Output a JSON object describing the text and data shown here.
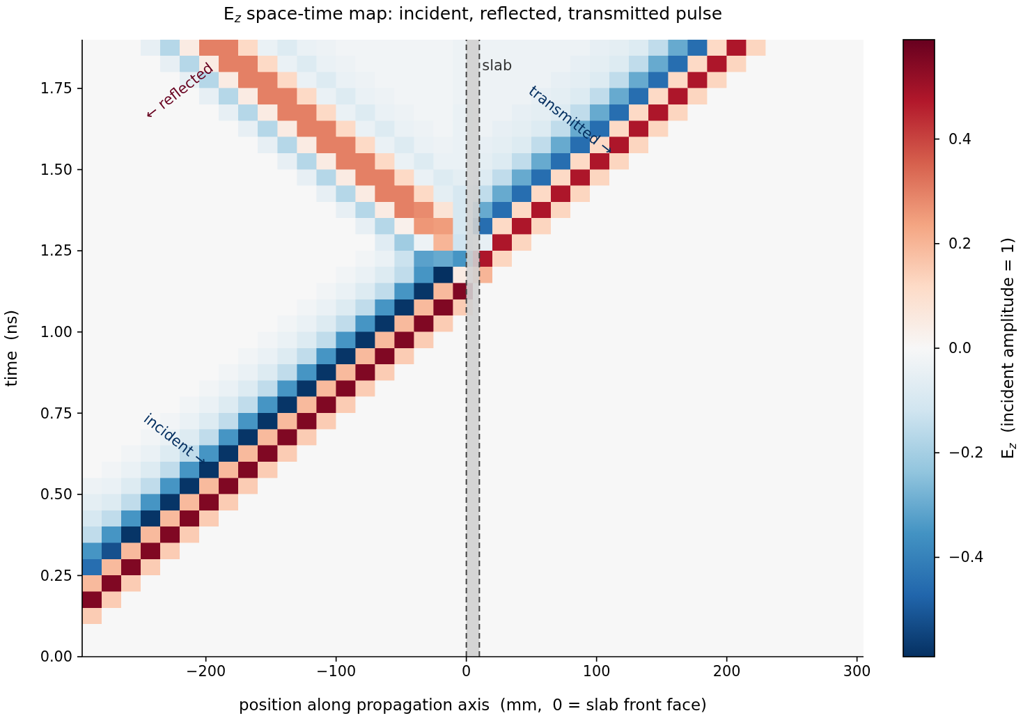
{
  "chart_data": {
    "type": "heatmap",
    "title": "E$_{z}$ space-time map: incident, reflected, transmitted pulse",
    "xlabel": "position along propagation axis  (mm,  0 = slab front face)",
    "ylabel": "time  (ns)",
    "clabel": "E$_{z}$  (incident amplitude = 1)",
    "x": [
      -287.5,
      -272.5,
      -257.5,
      -242.5,
      -227.5,
      -212.5,
      -197.5,
      -182.5,
      -167.5,
      -152.5,
      -137.5,
      -122.5,
      -107.5,
      -92.5,
      -77.5,
      -62.5,
      -47.5,
      -32.5,
      -17.5,
      -2.5,
      12.5,
      27.5,
      42.5,
      57.5,
      72.5,
      87.5,
      102.5,
      117.5,
      132.5,
      147.5,
      162.5,
      177.5,
      192.5,
      207.5,
      222.5,
      237.5,
      252.5,
      267.5,
      282.5,
      297.5
    ],
    "xlim": [
      -295,
      305
    ],
    "ylim": [
      0,
      1.9
    ],
    "xticks": [
      {
        "value": -200,
        "label": "−200"
      },
      {
        "value": -100,
        "label": "−100"
      },
      0,
      100,
      200,
      300
    ],
    "yticks": [
      {
        "value": 0,
        "label": "0.00"
      },
      {
        "value": 0.25,
        "label": "0.25"
      },
      {
        "value": 0.5,
        "label": "0.50"
      },
      {
        "value": 0.75,
        "label": "0.75"
      },
      {
        "value": 1,
        "label": "1.00"
      },
      {
        "value": 1.25,
        "label": "1.25"
      },
      {
        "value": 1.5,
        "label": "1.50"
      },
      {
        "value": 1.75,
        "label": "1.75"
      }
    ],
    "clim": [
      -0.59,
      0.59
    ],
    "cticks": [
      {
        "value": -0.4,
        "label": "−0.4"
      },
      {
        "value": -0.2,
        "label": "−0.2"
      },
      {
        "value": 0,
        "label": "0.0"
      },
      0.2,
      0.4
    ],
    "cells": [
      [
        0,
        0,
        0,
        -0.05,
        -0.17,
        0.05,
        0.3,
        0.3,
        0.12,
        -0.04,
        -0.08,
        -0.04,
        -0.03,
        -0.02,
        -0.02,
        -0.02,
        -0.02,
        -0.02,
        -0.02,
        -0.03,
        -0.03,
        -0.03,
        -0.03,
        -0.03,
        -0.03,
        -0.03,
        -0.05,
        -0.06,
        -0.08,
        -0.15,
        -0.3,
        -0.45,
        0.12,
        0.48,
        0.13,
        0,
        0,
        0,
        0,
        0
      ],
      [
        0,
        0,
        0,
        0,
        -0.05,
        -0.17,
        0.05,
        0.3,
        0.3,
        0.12,
        -0.04,
        -0.08,
        -0.04,
        -0.03,
        -0.02,
        -0.02,
        -0.02,
        -0.02,
        -0.02,
        -0.03,
        -0.03,
        -0.03,
        -0.03,
        -0.03,
        -0.03,
        -0.05,
        -0.06,
        -0.08,
        -0.15,
        -0.3,
        -0.45,
        0.12,
        0.48,
        0.13,
        0,
        0,
        0,
        0,
        0,
        0
      ],
      [
        0,
        0,
        0,
        0,
        0,
        -0.05,
        -0.17,
        0.05,
        0.3,
        0.3,
        0.12,
        -0.04,
        -0.08,
        -0.04,
        -0.03,
        -0.02,
        -0.02,
        -0.02,
        -0.02,
        -0.03,
        -0.03,
        -0.03,
        -0.03,
        -0.03,
        -0.05,
        -0.06,
        -0.08,
        -0.15,
        -0.3,
        -0.45,
        0.12,
        0.48,
        0.13,
        0,
        0,
        0,
        0,
        0,
        0,
        0
      ],
      [
        0,
        0,
        0,
        0,
        0,
        0,
        -0.05,
        -0.17,
        0.05,
        0.3,
        0.3,
        0.12,
        -0.04,
        -0.08,
        -0.04,
        -0.03,
        -0.02,
        -0.02,
        -0.02,
        -0.03,
        -0.03,
        -0.03,
        -0.03,
        -0.05,
        -0.06,
        -0.08,
        -0.15,
        -0.3,
        -0.45,
        0.12,
        0.48,
        0.13,
        0,
        0,
        0,
        0,
        0,
        0,
        0,
        0
      ],
      [
        0,
        0,
        0,
        0,
        0,
        0,
        0,
        -0.05,
        -0.17,
        0.05,
        0.3,
        0.3,
        0.12,
        -0.04,
        -0.08,
        -0.04,
        -0.03,
        -0.02,
        -0.02,
        -0.04,
        -0.03,
        -0.03,
        -0.05,
        -0.06,
        -0.08,
        -0.15,
        -0.3,
        -0.45,
        0.12,
        0.48,
        0.13,
        0,
        0,
        0,
        0,
        0,
        0,
        0,
        0,
        0
      ],
      [
        0,
        0,
        0,
        0,
        0,
        0,
        0,
        0,
        -0.05,
        -0.17,
        0.05,
        0.3,
        0.3,
        0.12,
        -0.04,
        -0.08,
        -0.04,
        -0.03,
        -0.02,
        -0.04,
        -0.03,
        -0.05,
        -0.06,
        -0.08,
        -0.15,
        -0.3,
        -0.45,
        0.12,
        0.48,
        0.13,
        0,
        0,
        0,
        0,
        0,
        0,
        0,
        0,
        0,
        0
      ],
      [
        0,
        0,
        0,
        0,
        0,
        0,
        0,
        0,
        0,
        -0.05,
        -0.17,
        0.05,
        0.3,
        0.3,
        0.12,
        -0.04,
        -0.08,
        -0.04,
        -0.03,
        -0.04,
        -0.05,
        -0.06,
        -0.08,
        -0.15,
        -0.3,
        -0.45,
        0.12,
        0.48,
        0.13,
        0,
        0,
        0,
        0,
        0,
        0,
        0,
        0,
        0,
        0,
        0
      ],
      [
        0,
        0,
        0,
        0,
        0,
        0,
        0,
        0,
        0,
        0,
        -0.05,
        -0.17,
        0.05,
        0.3,
        0.3,
        0.12,
        -0.04,
        -0.08,
        -0.04,
        -0.04,
        -0.06,
        -0.08,
        -0.15,
        -0.3,
        -0.45,
        0.12,
        0.48,
        0.13,
        0,
        0,
        0,
        0,
        0,
        0,
        0,
        0,
        0,
        0,
        0,
        0
      ],
      [
        0,
        0,
        0,
        0,
        0,
        0,
        0,
        0,
        0,
        0,
        0,
        -0.05,
        -0.17,
        0.05,
        0.3,
        0.3,
        0.12,
        -0.04,
        -0.08,
        -0.06,
        -0.08,
        -0.15,
        -0.3,
        -0.45,
        0.12,
        0.48,
        0.13,
        0,
        0,
        0,
        0,
        0,
        0,
        0,
        0,
        0,
        0,
        0,
        0,
        0
      ],
      [
        0,
        0,
        0,
        0,
        0,
        0,
        0,
        0,
        0,
        0,
        0,
        0,
        -0.05,
        -0.17,
        0.05,
        0.3,
        0.3,
        0.12,
        -0.06,
        -0.1,
        -0.15,
        -0.3,
        -0.45,
        0.12,
        0.48,
        0.13,
        0,
        0,
        0,
        0,
        0,
        0,
        0,
        0,
        0,
        0,
        0,
        0,
        0,
        0
      ],
      [
        0,
        0,
        0,
        0,
        0,
        0,
        0,
        0,
        0,
        0,
        0,
        0,
        0,
        -0.05,
        -0.17,
        0.05,
        0.3,
        0.28,
        0.08,
        -0.1,
        -0.3,
        -0.45,
        0.12,
        0.48,
        0.13,
        0,
        0,
        0,
        0,
        0,
        0,
        0,
        0,
        0,
        0,
        0,
        0,
        0,
        0,
        0
      ],
      [
        0,
        0,
        0,
        0,
        0,
        0,
        0,
        0,
        0,
        0,
        0,
        0,
        0,
        0,
        -0.05,
        -0.17,
        0.03,
        0.26,
        0.25,
        -0.1,
        -0.45,
        0.12,
        0.48,
        0.13,
        0,
        0,
        0,
        0,
        0,
        0,
        0,
        0,
        0,
        0,
        0,
        0,
        0,
        0,
        0,
        0
      ],
      [
        0,
        0,
        0,
        0,
        0,
        0,
        0,
        0,
        0,
        0,
        0,
        0,
        0,
        0,
        0,
        -0.07,
        -0.21,
        -0.03,
        0.2,
        -0.12,
        -0.05,
        0.48,
        0.13,
        0,
        0,
        0,
        0,
        0,
        0,
        0,
        0,
        0,
        0,
        0,
        0,
        0,
        0,
        0,
        0,
        0
      ],
      [
        0,
        0,
        0,
        0,
        0,
        0,
        0,
        0,
        0,
        0,
        0,
        0,
        0,
        0,
        -0.02,
        -0.04,
        -0.13,
        -0.32,
        -0.3,
        -0.35,
        0.48,
        0.13,
        0,
        0,
        0,
        0,
        0,
        0,
        0,
        0,
        0,
        0,
        0,
        0,
        0,
        0,
        0,
        0,
        0,
        0
      ],
      [
        0,
        0,
        0,
        0,
        0,
        0,
        0,
        0,
        0,
        0,
        0,
        0,
        0,
        -0.02,
        -0.04,
        -0.08,
        -0.15,
        -0.35,
        -0.59,
        0.05,
        0.2,
        0,
        0,
        0,
        0,
        0,
        0,
        0,
        0,
        0,
        0,
        0,
        0,
        0,
        0,
        0,
        0,
        0,
        0,
        0
      ],
      [
        0,
        0,
        0,
        0,
        0,
        0,
        0,
        0,
        0,
        0,
        0,
        0,
        -0.02,
        -0.04,
        -0.08,
        -0.15,
        -0.35,
        -0.58,
        0.19,
        0.55,
        0,
        0,
        0,
        0,
        0,
        0,
        0,
        0,
        0,
        0,
        0,
        0,
        0,
        0,
        0,
        0,
        0,
        0,
        0,
        0
      ],
      [
        0,
        0,
        0,
        0,
        0,
        0,
        0,
        0,
        0,
        0,
        0,
        -0.02,
        -0.04,
        -0.08,
        -0.15,
        -0.35,
        -0.58,
        0.19,
        0.55,
        0.15,
        0,
        0,
        0,
        0,
        0,
        0,
        0,
        0,
        0,
        0,
        0,
        0,
        0,
        0,
        0,
        0,
        0,
        0,
        0,
        0
      ],
      [
        0,
        0,
        0,
        0,
        0,
        0,
        0,
        0,
        0,
        0,
        -0.02,
        -0.04,
        -0.08,
        -0.15,
        -0.35,
        -0.58,
        0.19,
        0.55,
        0.15,
        0,
        0,
        0,
        0,
        0,
        0,
        0,
        0,
        0,
        0,
        0,
        0,
        0,
        0,
        0,
        0,
        0,
        0,
        0,
        0,
        0
      ],
      [
        0,
        0,
        0,
        0,
        0,
        0,
        0,
        0,
        0,
        -0.02,
        -0.04,
        -0.08,
        -0.15,
        -0.35,
        -0.58,
        0.19,
        0.55,
        0.15,
        0,
        0,
        0,
        0,
        0,
        0,
        0,
        0,
        0,
        0,
        0,
        0,
        0,
        0,
        0,
        0,
        0,
        0,
        0,
        0,
        0,
        0
      ],
      [
        0,
        0,
        0,
        0,
        0,
        0,
        0,
        0,
        -0.02,
        -0.04,
        -0.08,
        -0.15,
        -0.35,
        -0.58,
        0.19,
        0.55,
        0.15,
        0,
        0,
        0,
        0,
        0,
        0,
        0,
        0,
        0,
        0,
        0,
        0,
        0,
        0,
        0,
        0,
        0,
        0,
        0,
        0,
        0,
        0,
        0
      ],
      [
        0,
        0,
        0,
        0,
        0,
        0,
        0,
        -0.02,
        -0.04,
        -0.08,
        -0.15,
        -0.35,
        -0.58,
        0.19,
        0.55,
        0.15,
        0,
        0,
        0,
        0,
        0,
        0,
        0,
        0,
        0,
        0,
        0,
        0,
        0,
        0,
        0,
        0,
        0,
        0,
        0,
        0,
        0,
        0,
        0,
        0
      ],
      [
        0,
        0,
        0,
        0,
        0,
        0,
        -0.02,
        -0.04,
        -0.08,
        -0.15,
        -0.35,
        -0.58,
        0.19,
        0.55,
        0.15,
        0,
        0,
        0,
        0,
        0,
        0,
        0,
        0,
        0,
        0,
        0,
        0,
        0,
        0,
        0,
        0,
        0,
        0,
        0,
        0,
        0,
        0,
        0,
        0,
        0
      ],
      [
        0,
        0,
        0,
        0,
        0,
        -0.02,
        -0.04,
        -0.08,
        -0.15,
        -0.35,
        -0.58,
        0.19,
        0.55,
        0.15,
        0,
        0,
        0,
        0,
        0,
        0,
        0,
        0,
        0,
        0,
        0,
        0,
        0,
        0,
        0,
        0,
        0,
        0,
        0,
        0,
        0,
        0,
        0,
        0,
        0,
        0
      ],
      [
        0,
        0,
        0,
        0,
        -0.02,
        -0.04,
        -0.08,
        -0.15,
        -0.35,
        -0.58,
        0.19,
        0.55,
        0.15,
        0,
        0,
        0,
        0,
        0,
        0,
        0,
        0,
        0,
        0,
        0,
        0,
        0,
        0,
        0,
        0,
        0,
        0,
        0,
        0,
        0,
        0,
        0,
        0,
        0,
        0,
        0
      ],
      [
        0,
        0,
        0,
        -0.02,
        -0.04,
        -0.08,
        -0.15,
        -0.35,
        -0.58,
        0.19,
        0.55,
        0.15,
        0,
        0,
        0,
        0,
        0,
        0,
        0,
        0,
        0,
        0,
        0,
        0,
        0,
        0,
        0,
        0,
        0,
        0,
        0,
        0,
        0,
        0,
        0,
        0,
        0,
        0,
        0,
        0
      ],
      [
        0,
        0,
        -0.02,
        -0.04,
        -0.08,
        -0.15,
        -0.35,
        -0.58,
        0.19,
        0.55,
        0.15,
        0,
        0,
        0,
        0,
        0,
        0,
        0,
        0,
        0,
        0,
        0,
        0,
        0,
        0,
        0,
        0,
        0,
        0,
        0,
        0,
        0,
        0,
        0,
        0,
        0,
        0,
        0,
        0,
        0
      ],
      [
        0,
        -0.02,
        -0.04,
        -0.08,
        -0.15,
        -0.35,
        -0.58,
        0.19,
        0.55,
        0.15,
        0,
        0,
        0,
        0,
        0,
        0,
        0,
        0,
        0,
        0,
        0,
        0,
        0,
        0,
        0,
        0,
        0,
        0,
        0,
        0,
        0,
        0,
        0,
        0,
        0,
        0,
        0,
        0,
        0,
        0
      ],
      [
        -0.03,
        -0.04,
        -0.08,
        -0.15,
        -0.35,
        -0.58,
        0.19,
        0.55,
        0.15,
        0,
        0,
        0,
        0,
        0,
        0,
        0,
        0,
        0,
        0,
        0,
        0,
        0,
        0,
        0,
        0,
        0,
        0,
        0,
        0,
        0,
        0,
        0,
        0,
        0,
        0,
        0,
        0,
        0,
        0,
        0
      ],
      [
        -0.06,
        -0.08,
        -0.15,
        -0.35,
        -0.58,
        0.19,
        0.55,
        0.15,
        0,
        0,
        0,
        0,
        0,
        0,
        0,
        0,
        0,
        0,
        0,
        0,
        0,
        0,
        0,
        0,
        0,
        0,
        0,
        0,
        0,
        0,
        0,
        0,
        0,
        0,
        0,
        0,
        0,
        0,
        0,
        0
      ],
      [
        -0.1,
        -0.15,
        -0.35,
        -0.58,
        0.19,
        0.55,
        0.15,
        0,
        0,
        0,
        0,
        0,
        0,
        0,
        0,
        0,
        0,
        0,
        0,
        0,
        0,
        0,
        0,
        0,
        0,
        0,
        0,
        0,
        0,
        0,
        0,
        0,
        0,
        0,
        0,
        0,
        0,
        0,
        0,
        0
      ],
      [
        -0.15,
        -0.35,
        -0.58,
        0.19,
        0.55,
        0.15,
        0,
        0,
        0,
        0,
        0,
        0,
        0,
        0,
        0,
        0,
        0,
        0,
        0,
        0,
        0,
        0,
        0,
        0,
        0,
        0,
        0,
        0,
        0,
        0,
        0,
        0,
        0,
        0,
        0,
        0,
        0,
        0,
        0,
        0
      ],
      [
        -0.35,
        -0.52,
        0.19,
        0.55,
        0.15,
        0,
        0,
        0,
        0,
        0,
        0,
        0,
        0,
        0,
        0,
        0,
        0,
        0,
        0,
        0,
        0,
        0,
        0,
        0,
        0,
        0,
        0,
        0,
        0,
        0,
        0,
        0,
        0,
        0,
        0,
        0,
        0,
        0,
        0,
        0
      ],
      [
        -0.45,
        0.19,
        0.55,
        0.15,
        0,
        0,
        0,
        0,
        0,
        0,
        0,
        0,
        0,
        0,
        0,
        0,
        0,
        0,
        0,
        0,
        0,
        0,
        0,
        0,
        0,
        0,
        0,
        0,
        0,
        0,
        0,
        0,
        0,
        0,
        0,
        0,
        0,
        0,
        0,
        0
      ],
      [
        0.19,
        0.55,
        0.15,
        0,
        0,
        0,
        0,
        0,
        0,
        0,
        0,
        0,
        0,
        0,
        0,
        0,
        0,
        0,
        0,
        0,
        0,
        0,
        0,
        0,
        0,
        0,
        0,
        0,
        0,
        0,
        0,
        0,
        0,
        0,
        0,
        0,
        0,
        0,
        0,
        0
      ],
      [
        0.55,
        0.15,
        0,
        0,
        0,
        0,
        0,
        0,
        0,
        0,
        0,
        0,
        0,
        0,
        0,
        0,
        0,
        0,
        0,
        0,
        0,
        0,
        0,
        0,
        0,
        0,
        0,
        0,
        0,
        0,
        0,
        0,
        0,
        0,
        0,
        0,
        0,
        0,
        0,
        0
      ],
      [
        0.15,
        0,
        0,
        0,
        0,
        0,
        0,
        0,
        0,
        0,
        0,
        0,
        0,
        0,
        0,
        0,
        0,
        0,
        0,
        0,
        0,
        0,
        0,
        0,
        0,
        0,
        0,
        0,
        0,
        0,
        0,
        0,
        0,
        0,
        0,
        0,
        0,
        0,
        0,
        0
      ],
      [
        0,
        0,
        0,
        0,
        0,
        0,
        0,
        0,
        0,
        0,
        0,
        0,
        0,
        0,
        0,
        0,
        0,
        0,
        0,
        0,
        0,
        0,
        0,
        0,
        0,
        0,
        0,
        0,
        0,
        0,
        0,
        0,
        0,
        0,
        0,
        0,
        0,
        0,
        0,
        0
      ],
      [
        0,
        0,
        0,
        0,
        0,
        0,
        0,
        0,
        0,
        0,
        0,
        0,
        0,
        0,
        0,
        0,
        0,
        0,
        0,
        0,
        0,
        0,
        0,
        0,
        0,
        0,
        0,
        0,
        0,
        0,
        0,
        0,
        0,
        0,
        0,
        0,
        0,
        0,
        0,
        0
      ]
    ],
    "bands": [
      {
        "axis": "x",
        "from": 0,
        "to": 10,
        "label": "slab",
        "color": "#d0d0d0"
      }
    ],
    "ref_lines": [
      {
        "axis": "x",
        "value": 0,
        "color": "#444444",
        "line_style": "dashed"
      },
      {
        "axis": "x",
        "value": 10,
        "color": "#444444",
        "line_style": "dashed"
      }
    ],
    "annotations": [
      "← reflected",
      "incident →",
      "transmitted →"
    ]
  }
}
